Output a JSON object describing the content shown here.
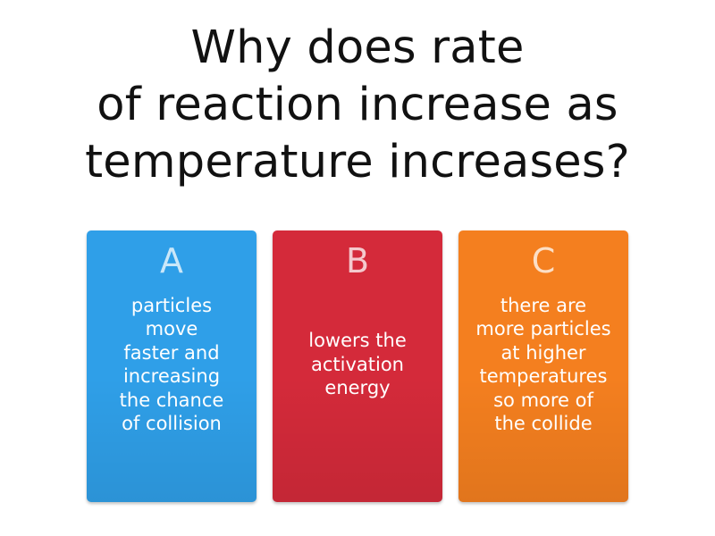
{
  "question": {
    "lines": [
      "Why does rate",
      "of reaction increase as",
      "temperature increases?"
    ]
  },
  "answers": [
    {
      "letter": "A",
      "text": "particles\nmove\nfaster and\nincreasing\nthe chance\nof collision",
      "color": "#2f9fe8"
    },
    {
      "letter": "B",
      "text": "lowers the\nactivation\nenergy",
      "color": "#d42a3a"
    },
    {
      "letter": "C",
      "text": "there are\nmore particles\nat higher\ntemperatures\nso more of\nthe collide",
      "color": "#f47f1f"
    }
  ]
}
